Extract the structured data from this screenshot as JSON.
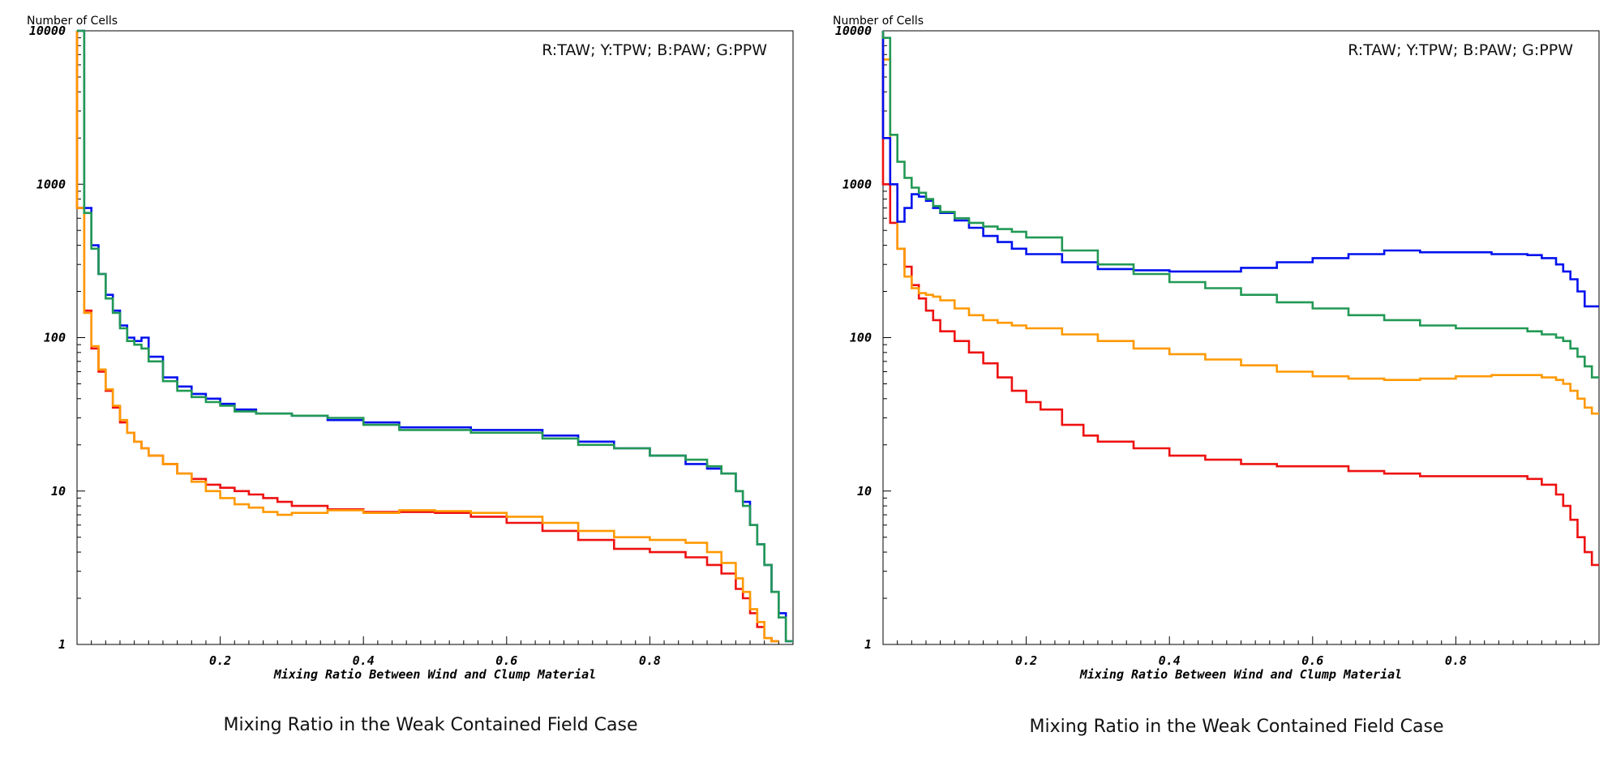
{
  "chart_data": [
    {
      "type": "line",
      "ylabel": "Number of Cells",
      "xlabel": "Mixing Ratio Between Wind and Clump Material",
      "legend_text": "R:TAW; Y:TPW; B:PAW; G:PPW",
      "legend_position": "top-right",
      "xlim": [
        0,
        1
      ],
      "ylim": [
        1,
        10000
      ],
      "y_scale": "log",
      "x_ticks": [
        "0.2",
        "0.4",
        "0.6",
        "0.8"
      ],
      "y_ticks": [
        "1",
        "10",
        "100",
        "1000",
        "10000"
      ],
      "grid": false,
      "caption": "Mixing Ratio in the Weak Contained Field Case",
      "series": [
        {
          "key": "TAW",
          "color": "#ee1111",
          "x": [
            0,
            0.01,
            0.02,
            0.03,
            0.04,
            0.05,
            0.06,
            0.07,
            0.08,
            0.09,
            0.1,
            0.12,
            0.14,
            0.16,
            0.18,
            0.2,
            0.22,
            0.24,
            0.26,
            0.28,
            0.3,
            0.35,
            0.4,
            0.45,
            0.5,
            0.55,
            0.6,
            0.65,
            0.7,
            0.75,
            0.8,
            0.85,
            0.88,
            0.9,
            0.92,
            0.93,
            0.94,
            0.95,
            0.96,
            0.97
          ],
          "y": [
            700,
            150,
            85,
            60,
            45,
            35,
            28,
            24,
            21,
            19,
            17,
            15,
            13,
            12,
            11,
            10.5,
            10,
            9.5,
            9,
            8.5,
            8,
            7.6,
            7.3,
            7.3,
            7.2,
            6.8,
            6.2,
            5.5,
            4.8,
            4.2,
            4,
            3.7,
            3.3,
            2.9,
            2.3,
            2,
            1.6,
            1.3,
            1.1,
            1.05
          ]
        },
        {
          "key": "TPW",
          "color": "#ff9900",
          "x": [
            0,
            0.01,
            0.02,
            0.03,
            0.04,
            0.05,
            0.06,
            0.07,
            0.08,
            0.09,
            0.1,
            0.12,
            0.14,
            0.16,
            0.18,
            0.2,
            0.22,
            0.24,
            0.26,
            0.28,
            0.3,
            0.35,
            0.4,
            0.45,
            0.5,
            0.55,
            0.6,
            0.65,
            0.7,
            0.75,
            0.8,
            0.85,
            0.88,
            0.9,
            0.92,
            0.93,
            0.94,
            0.95,
            0.96,
            0.97
          ],
          "y": [
            700,
            145,
            88,
            62,
            46,
            36,
            29,
            24,
            21,
            19,
            17,
            15,
            13,
            11.5,
            10,
            9,
            8.2,
            7.8,
            7.3,
            7,
            7.2,
            7.5,
            7.2,
            7.5,
            7.4,
            7.2,
            6.8,
            6.2,
            5.5,
            5,
            4.8,
            4.6,
            4,
            3.4,
            2.7,
            2.2,
            1.7,
            1.4,
            1.1,
            1.05
          ]
        },
        {
          "key": "PAW",
          "color": "#0011ee",
          "x": [
            0,
            0.01,
            0.02,
            0.03,
            0.04,
            0.05,
            0.06,
            0.07,
            0.08,
            0.09,
            0.1,
            0.12,
            0.14,
            0.16,
            0.18,
            0.2,
            0.22,
            0.25,
            0.3,
            0.35,
            0.4,
            0.45,
            0.5,
            0.55,
            0.6,
            0.65,
            0.7,
            0.75,
            0.8,
            0.85,
            0.88,
            0.9,
            0.92,
            0.93,
            0.94,
            0.95,
            0.96,
            0.97,
            0.98,
            0.99
          ],
          "y": [
            10000,
            700,
            400,
            260,
            190,
            150,
            120,
            100,
            95,
            100,
            75,
            55,
            48,
            43,
            40,
            37,
            34,
            32,
            31,
            29,
            28,
            26,
            26,
            25,
            25,
            23,
            21,
            19,
            17,
            15,
            14,
            13,
            10,
            8.5,
            6,
            4.5,
            3.3,
            2.2,
            1.6,
            1.05
          ]
        },
        {
          "key": "PPW",
          "color": "#229955",
          "x": [
            0,
            0.01,
            0.02,
            0.03,
            0.04,
            0.05,
            0.06,
            0.07,
            0.08,
            0.09,
            0.1,
            0.12,
            0.14,
            0.16,
            0.18,
            0.2,
            0.22,
            0.25,
            0.3,
            0.35,
            0.4,
            0.45,
            0.5,
            0.55,
            0.6,
            0.65,
            0.7,
            0.75,
            0.8,
            0.85,
            0.88,
            0.9,
            0.92,
            0.93,
            0.94,
            0.95,
            0.96,
            0.97,
            0.98,
            0.99
          ],
          "y": [
            10000,
            650,
            380,
            260,
            180,
            145,
            115,
            95,
            90,
            85,
            70,
            52,
            45,
            41,
            38,
            36,
            33,
            32,
            31,
            30,
            27,
            25,
            25,
            24,
            24,
            22,
            20,
            19,
            17,
            16,
            14.5,
            13,
            10,
            8,
            6,
            4.5,
            3.3,
            2.2,
            1.5,
            1.05
          ]
        }
      ]
    },
    {
      "type": "line",
      "ylabel": "Number of Cells",
      "xlabel": "Mixing Ratio Between Wind and Clump Material",
      "legend_text": "R:TAW; Y:TPW; B:PAW; G:PPW",
      "legend_position": "top-right",
      "xlim": [
        0,
        1
      ],
      "ylim": [
        1,
        10000
      ],
      "y_scale": "log",
      "x_ticks": [
        "0.2",
        "0.4",
        "0.6",
        "0.8"
      ],
      "y_ticks": [
        "1",
        "10",
        "100",
        "1000",
        "10000"
      ],
      "grid": false,
      "caption": "Mixing Ratio in the Weak Contained Field Case",
      "series": [
        {
          "key": "TAW",
          "color": "#ee1111",
          "x": [
            0,
            0.01,
            0.02,
            0.03,
            0.04,
            0.05,
            0.06,
            0.07,
            0.08,
            0.1,
            0.12,
            0.14,
            0.16,
            0.18,
            0.2,
            0.22,
            0.25,
            0.28,
            0.3,
            0.35,
            0.4,
            0.45,
            0.5,
            0.55,
            0.6,
            0.65,
            0.7,
            0.75,
            0.8,
            0.85,
            0.9,
            0.92,
            0.94,
            0.95,
            0.96,
            0.97,
            0.98,
            0.99
          ],
          "y": [
            1000,
            560,
            380,
            290,
            220,
            180,
            150,
            130,
            110,
            95,
            80,
            68,
            55,
            45,
            38,
            34,
            27,
            23,
            21,
            19,
            17,
            16,
            15,
            14.5,
            14.5,
            13.5,
            13,
            12.5,
            12.5,
            12.5,
            12,
            11,
            9.5,
            8,
            6.5,
            5,
            4,
            3.3
          ]
        },
        {
          "key": "TPW",
          "color": "#ff9900",
          "x": [
            0,
            0.01,
            0.02,
            0.03,
            0.04,
            0.05,
            0.06,
            0.07,
            0.08,
            0.1,
            0.12,
            0.14,
            0.16,
            0.18,
            0.2,
            0.25,
            0.3,
            0.35,
            0.4,
            0.45,
            0.5,
            0.55,
            0.6,
            0.65,
            0.7,
            0.75,
            0.8,
            0.85,
            0.9,
            0.92,
            0.94,
            0.95,
            0.96,
            0.97,
            0.98,
            0.99
          ],
          "y": [
            6500,
            1000,
            380,
            250,
            210,
            195,
            190,
            185,
            175,
            155,
            140,
            130,
            125,
            120,
            115,
            105,
            95,
            85,
            78,
            72,
            66,
            60,
            56,
            54,
            53,
            54,
            56,
            57,
            57,
            55,
            53,
            50,
            45,
            40,
            35,
            32
          ]
        },
        {
          "key": "PAW",
          "color": "#0011ee",
          "x": [
            0,
            0.01,
            0.02,
            0.03,
            0.04,
            0.05,
            0.06,
            0.07,
            0.08,
            0.1,
            0.12,
            0.14,
            0.16,
            0.18,
            0.2,
            0.25,
            0.3,
            0.35,
            0.4,
            0.45,
            0.5,
            0.55,
            0.6,
            0.65,
            0.7,
            0.75,
            0.8,
            0.85,
            0.9,
            0.92,
            0.94,
            0.95,
            0.96,
            0.97,
            0.98,
            0.99
          ],
          "y": [
            2000,
            1000,
            570,
            700,
            860,
            830,
            780,
            700,
            650,
            580,
            520,
            460,
            420,
            380,
            350,
            310,
            280,
            275,
            270,
            270,
            285,
            310,
            330,
            350,
            370,
            360,
            360,
            350,
            345,
            330,
            300,
            270,
            240,
            200,
            160,
            160
          ]
        },
        {
          "key": "PPW",
          "color": "#229955",
          "x": [
            0,
            0.01,
            0.02,
            0.03,
            0.04,
            0.05,
            0.06,
            0.07,
            0.08,
            0.1,
            0.12,
            0.14,
            0.16,
            0.18,
            0.2,
            0.25,
            0.3,
            0.35,
            0.4,
            0.45,
            0.5,
            0.55,
            0.6,
            0.65,
            0.7,
            0.75,
            0.8,
            0.85,
            0.9,
            0.92,
            0.94,
            0.95,
            0.96,
            0.97,
            0.98,
            0.99
          ],
          "y": [
            9000,
            2100,
            1400,
            1100,
            950,
            880,
            800,
            720,
            660,
            600,
            560,
            530,
            510,
            490,
            450,
            370,
            300,
            260,
            230,
            210,
            190,
            170,
            155,
            140,
            130,
            120,
            115,
            115,
            110,
            105,
            100,
            95,
            85,
            75,
            65,
            55
          ]
        }
      ]
    }
  ]
}
